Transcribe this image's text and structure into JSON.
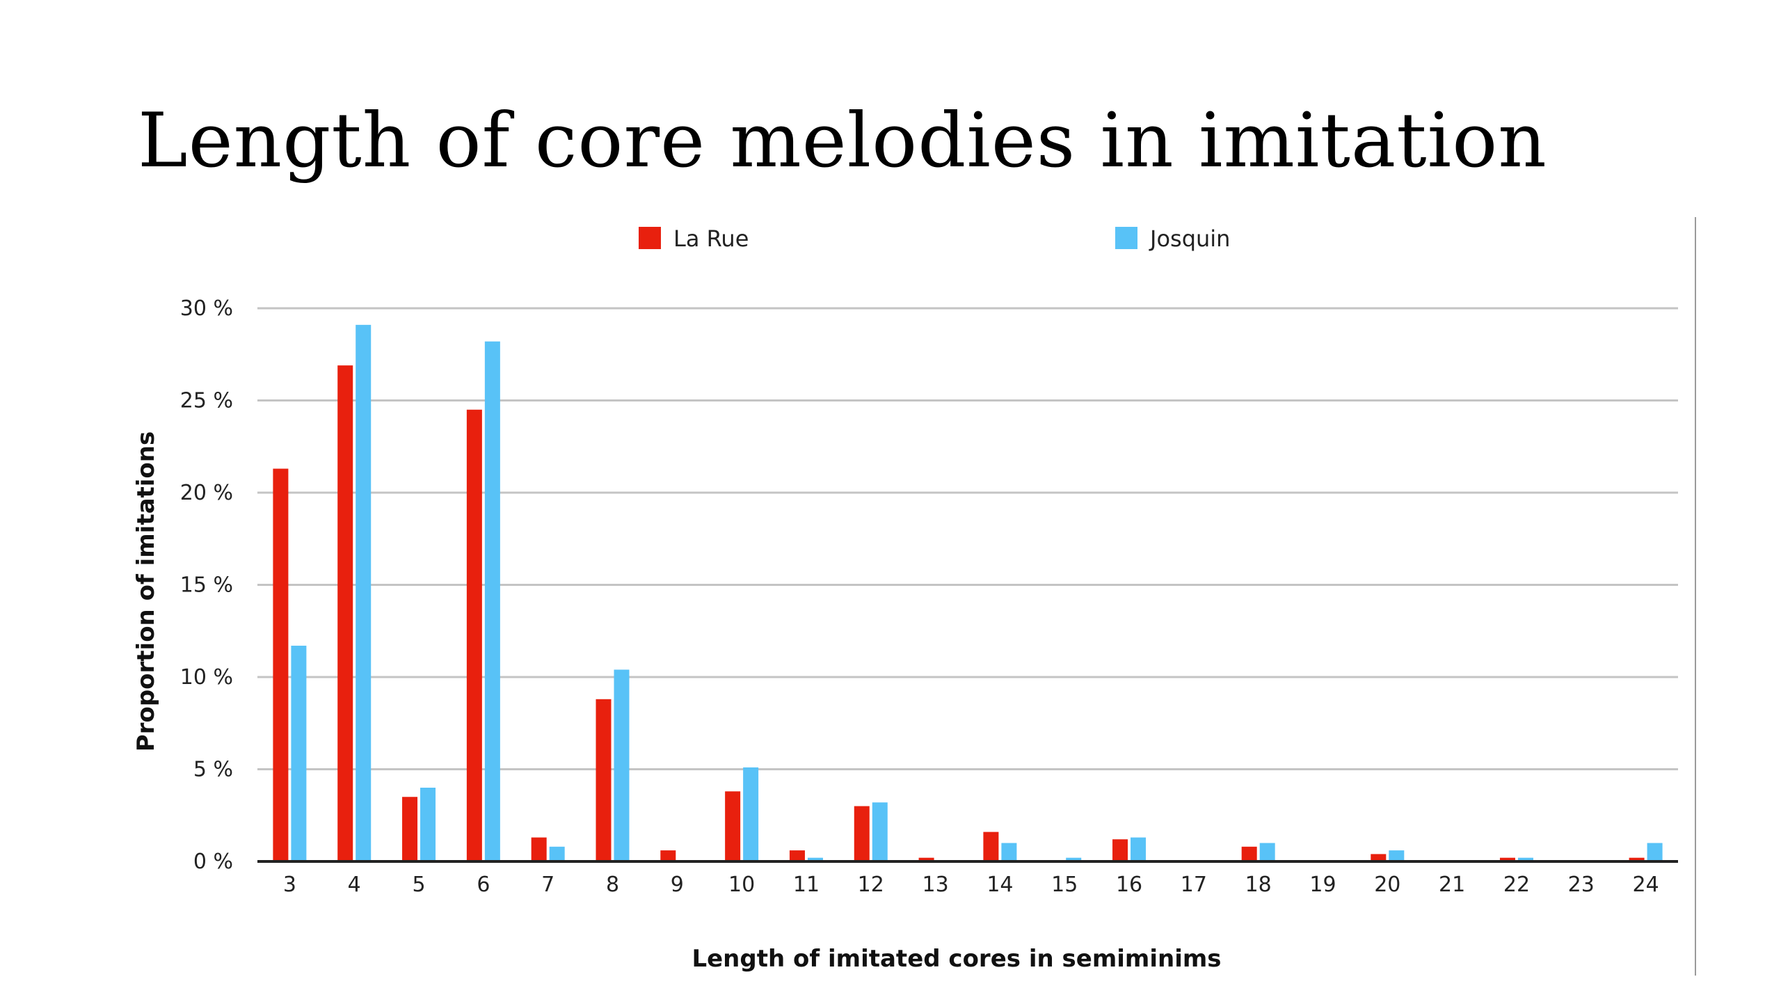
{
  "title": "Length of core melodies in imitation",
  "chart_data": {
    "type": "bar",
    "xlabel": "Length of imitated cores in semiminims",
    "ylabel": "Proportion of imitations",
    "ylim": [
      0,
      30
    ],
    "yticks": [
      "0 %",
      "5 %",
      "10 %",
      "15 %",
      "20 %",
      "25 %",
      "30 %"
    ],
    "grid": true,
    "legend_position": "top",
    "categories": [
      "3",
      "4",
      "5",
      "6",
      "7",
      "8",
      "9",
      "10",
      "11",
      "12",
      "13",
      "14",
      "15",
      "16",
      "17",
      "18",
      "19",
      "20",
      "21",
      "22",
      "23",
      "24"
    ],
    "series": [
      {
        "name": "La Rue",
        "color": "#e8200e",
        "values": [
          21.3,
          26.9,
          3.5,
          24.5,
          1.3,
          8.8,
          0.6,
          3.8,
          0.6,
          3.0,
          0.2,
          1.6,
          0.0,
          1.2,
          0.0,
          0.8,
          0.0,
          0.4,
          0.0,
          0.2,
          0.0,
          0.2
        ]
      },
      {
        "name": "Josquin",
        "color": "#58c2f7",
        "values": [
          11.7,
          29.1,
          4.0,
          28.2,
          0.8,
          10.4,
          0.0,
          5.1,
          0.2,
          3.2,
          0.0,
          1.0,
          0.2,
          1.3,
          0.0,
          1.0,
          0.0,
          0.6,
          0.0,
          0.2,
          0.0,
          1.0
        ]
      }
    ]
  }
}
